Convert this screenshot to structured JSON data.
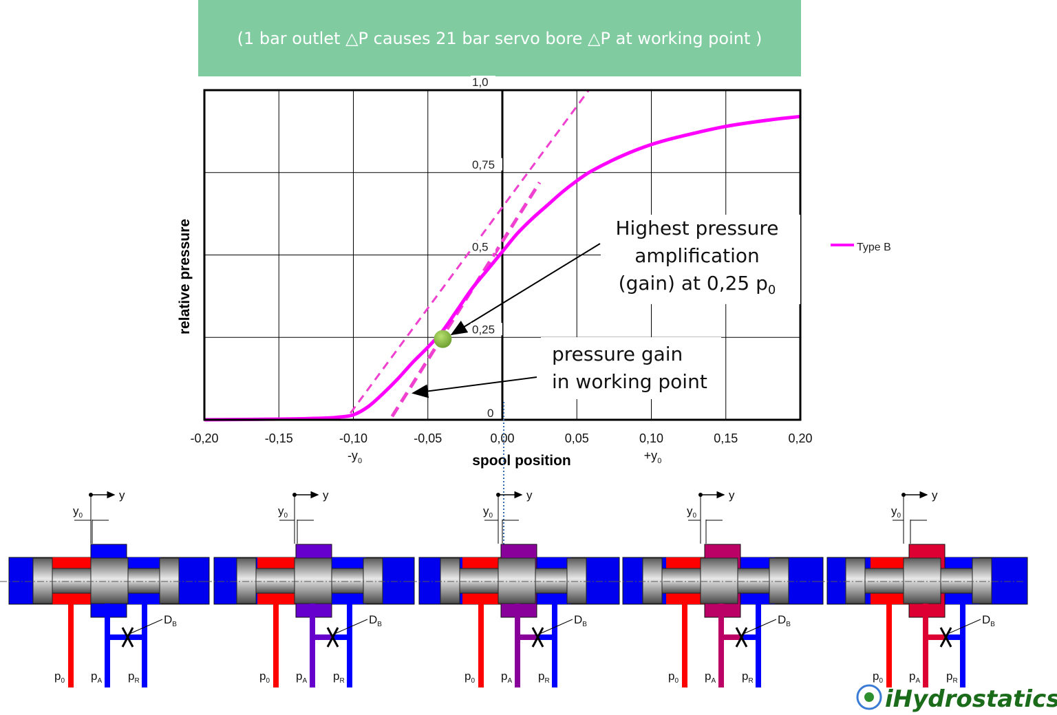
{
  "banner": {
    "text": "(1 bar outlet △P causes 21 bar servo bore △P at working point  )",
    "bg_color": "#80cba0"
  },
  "chart_data": {
    "type": "line",
    "xlabel": "spool position",
    "ylabel": "relative pressure",
    "xlim": [
      -0.2,
      0.2
    ],
    "ylim": [
      0,
      1.0
    ],
    "x_ticks": [
      "-0,20",
      "-0,15",
      "-0,10",
      "-0,05",
      "0,00",
      "0,05",
      "0,10",
      "0,15",
      "0,20"
    ],
    "y_ticks": [
      "0",
      "0,25",
      "0,5",
      "0,75",
      "1,0"
    ],
    "x_tick_values": [
      -0.2,
      -0.15,
      -0.1,
      -0.05,
      0.0,
      0.05,
      0.1,
      0.15,
      0.2
    ],
    "y_tick_values": [
      0,
      0.25,
      0.5,
      0.75,
      1.0
    ],
    "x_sub_labels": [
      {
        "x": -0.1,
        "label": "-y",
        "sub": "0"
      },
      {
        "x": 0.1,
        "label": "+y",
        "sub": "0"
      }
    ],
    "grid": true,
    "legend_position": "right",
    "series": [
      {
        "name": "Type B",
        "color": "#ff00ff",
        "x": [
          -0.2,
          -0.15,
          -0.12,
          -0.11,
          -0.1,
          -0.09,
          -0.08,
          -0.07,
          -0.06,
          -0.05,
          -0.04,
          -0.03,
          -0.02,
          -0.01,
          0.0,
          0.01,
          0.02,
          0.03,
          0.04,
          0.05,
          0.06,
          0.08,
          0.1,
          0.12,
          0.15,
          0.18,
          0.2
        ],
        "y": [
          0.0,
          0.002,
          0.005,
          0.008,
          0.015,
          0.04,
          0.08,
          0.125,
          0.175,
          0.22,
          0.27,
          0.335,
          0.4,
          0.455,
          0.51,
          0.565,
          0.61,
          0.65,
          0.69,
          0.725,
          0.755,
          0.8,
          0.835,
          0.86,
          0.89,
          0.91,
          0.92
        ]
      }
    ],
    "tangent_lines": [
      {
        "x": [
          -0.102,
          0.058
        ],
        "y": [
          0.02,
          1.0
        ],
        "style": "dashed-thin"
      },
      {
        "x": [
          -0.074,
          0.025
        ],
        "y": [
          0.01,
          0.72
        ],
        "style": "dashed-thick"
      }
    ],
    "working_point": {
      "x": -0.04,
      "y": 0.245,
      "color": "#7ab33a"
    }
  },
  "annotations": {
    "gain_line1": "Highest pressure",
    "gain_line2": "amplification",
    "gain_line3": "(gain) at 0,25 p",
    "gain_sub": "0",
    "wp_line1": "pressure gain",
    "wp_line2": "in working point"
  },
  "valves": {
    "y_arrow_label": "y",
    "y0_label": "y",
    "y0_sub": "0",
    "db_label": "D",
    "db_sub": "B",
    "p0_label": "p",
    "p0_sub": "0",
    "pa_label": "p",
    "pa_sub": "A",
    "pr_label": "p",
    "pr_sub": "R",
    "colors": {
      "supply": "#ff0000",
      "return": "#0000ff",
      "spool": "#888888",
      "pa": [
        "#0000ff",
        "#6600cc",
        "#880099",
        "#bb0066",
        "#dd0033"
      ]
    }
  },
  "logo": {
    "text": "iHydrostatics"
  }
}
